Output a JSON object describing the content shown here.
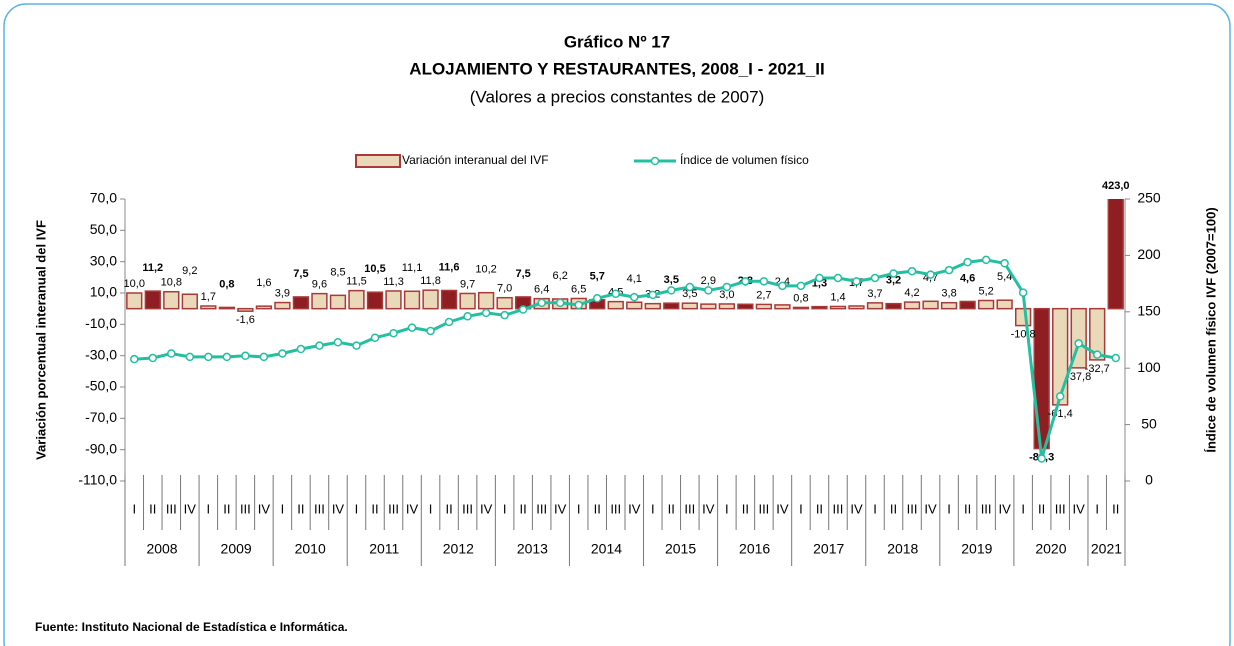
{
  "chart_data": {
    "type": "bar+line",
    "title": "Gráfico Nº 17",
    "subtitle": "ALOJAMIENTO Y RESTAURANTES, 2008_I - 2021_II",
    "note": "(Valores a precios constantes de 2007)",
    "y_label": "Variación porcentual interanual del IVF",
    "y2_label": "Índice de volumen físico IVF (2007=100)",
    "source": "Fuente: Instituto Nacional de Estadística e Informática.",
    "categories": [
      "I",
      "II",
      "III",
      "IV",
      "I",
      "II",
      "III",
      "IV",
      "I",
      "II",
      "III",
      "IV",
      "I",
      "II",
      "III",
      "IV",
      "I",
      "II",
      "III",
      "IV",
      "I",
      "II",
      "III",
      "IV",
      "I",
      "II",
      "III",
      "IV",
      "I",
      "II",
      "III",
      "IV",
      "I",
      "II",
      "III",
      "IV",
      "I",
      "II",
      "III",
      "IV",
      "I",
      "II",
      "III",
      "IV",
      "I",
      "II",
      "III",
      "IV",
      "I",
      "II",
      "III",
      "IV",
      "I",
      "II"
    ],
    "years": [
      "2008",
      "2009",
      "2010",
      "2011",
      "2012",
      "2013",
      "2014",
      "2015",
      "2016",
      "2017",
      "2018",
      "2019",
      "2020",
      "2021"
    ],
    "ylim": [
      -110,
      70
    ],
    "yticks": [
      {
        "value": 70,
        "label": "70,0"
      },
      {
        "value": 50,
        "label": "50,0"
      },
      {
        "value": 30,
        "label": "30,0"
      },
      {
        "value": 10,
        "label": "10,0"
      },
      {
        "value": -10,
        "label": "-10,0"
      },
      {
        "value": -30,
        "label": "-30,0"
      },
      {
        "value": -50,
        "label": "-50,0"
      },
      {
        "value": -70,
        "label": "-70,0"
      },
      {
        "value": -90,
        "label": "-90,0"
      },
      {
        "value": -110,
        "label": "-110,0"
      }
    ],
    "y2lim": [
      0,
      250
    ],
    "y2ticks": [
      0,
      50,
      100,
      150,
      200,
      250
    ],
    "series": [
      {
        "name": "Variación interanual del IVF",
        "type": "bar",
        "color": "#e9d9b8",
        "edge_color": "#a83a3a",
        "highlight_color": "#8e1e22",
        "values": [
          10.0,
          11.2,
          10.8,
          9.2,
          1.7,
          0.8,
          -1.6,
          1.6,
          3.9,
          7.5,
          9.6,
          8.5,
          11.5,
          10.5,
          11.3,
          11.1,
          11.8,
          11.6,
          9.7,
          10.2,
          7.0,
          7.5,
          6.4,
          6.2,
          6.5,
          5.7,
          4.5,
          4.1,
          3.2,
          3.5,
          3.5,
          2.9,
          3.0,
          2.8,
          2.7,
          2.4,
          0.8,
          1.3,
          1.4,
          1.7,
          3.7,
          3.2,
          4.2,
          4.7,
          3.8,
          4.6,
          5.2,
          5.4,
          -10.8,
          -89.3,
          -61.4,
          -37.8,
          -32.7,
          423.0
        ],
        "value_labels": [
          "10,0",
          "11,2",
          "10,8",
          "9,2",
          "1,7",
          "0,8",
          "-1,6",
          "1,6",
          "3,9",
          "7,5",
          "9,6",
          "8,5",
          "11,5",
          "10,5",
          "11,3",
          "11,1",
          "11,8",
          "11,6",
          "9,7",
          "10,2",
          "7,0",
          "7,5",
          "6,4",
          "6,2",
          "6,5",
          "5,7",
          "4,5",
          "4,1",
          "3,2",
          "3,5",
          "3,5",
          "2,9",
          "3,0",
          "2,8",
          "2,7",
          "2,4",
          "0,8",
          "1,3",
          "1,4",
          "1,7",
          "3,7",
          "3,2",
          "4,2",
          "4,7",
          "3,8",
          "4,6",
          "5,2",
          "5,4",
          "-10,8",
          "-89,3",
          "-61,4",
          "-37,8",
          "-32,7",
          "423,0"
        ]
      },
      {
        "name": "Índice de volumen físico",
        "type": "line",
        "axis": "y2",
        "color": "#22bfa0",
        "values": [
          108,
          109,
          113,
          110,
          110,
          110,
          111,
          110,
          113,
          117,
          120,
          123,
          120,
          127,
          131,
          136,
          133,
          141,
          146,
          149,
          147,
          152,
          158,
          158,
          156,
          162,
          166,
          163,
          165,
          169,
          172,
          169,
          172,
          177,
          177,
          173,
          173,
          180,
          180,
          177,
          180,
          184,
          186,
          183,
          187,
          194,
          196,
          193,
          167,
          20,
          75,
          122,
          112,
          109
        ]
      }
    ]
  }
}
